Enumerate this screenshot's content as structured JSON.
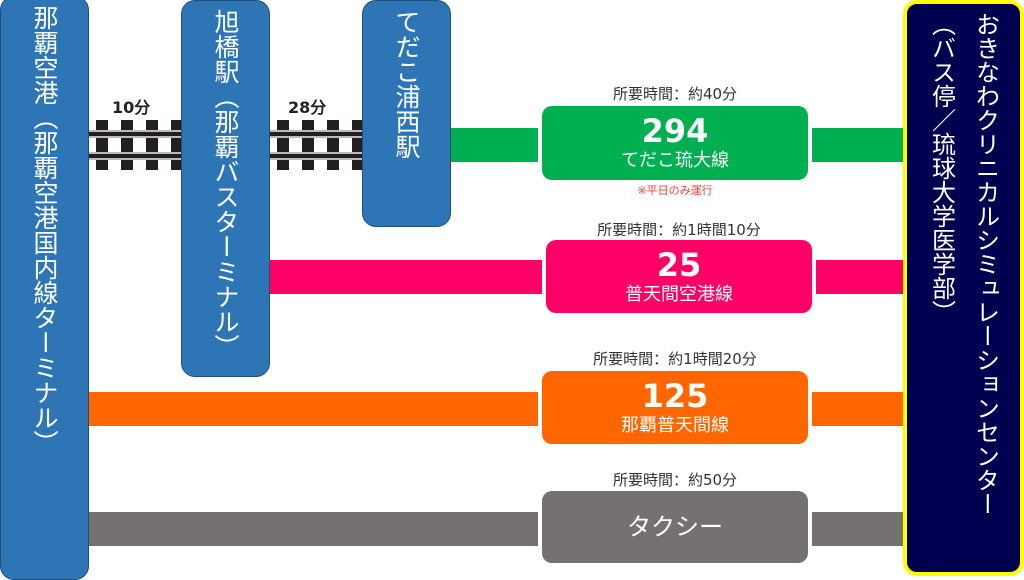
{
  "stations": [
    {
      "name": "那覇空港（那覇空港国内線ターミナル）"
    },
    {
      "name": "旭橋駅（那覇バスターミナル）"
    },
    {
      "name": "てだこ浦西駅"
    }
  ],
  "rail_segments": [
    {
      "time": "10分"
    },
    {
      "time": "28分"
    }
  ],
  "routes": [
    {
      "number": "294",
      "name": "てだこ琉大線",
      "duration": "所要時間：約40分",
      "note": "※平日のみ運行",
      "color": "#00b050"
    },
    {
      "number": "25",
      "name": "普天間空港線",
      "duration": "所要時間：約1時間10分",
      "color": "#ff0066"
    },
    {
      "number": "125",
      "name": "那覇普天間線",
      "duration": "所要時間：約1時間20分",
      "color": "#ff6600"
    },
    {
      "name": "タクシー",
      "duration": "所要時間：約50分",
      "color": "#767171"
    }
  ],
  "destination": {
    "name": "おきなわクリニカルシミュレーションセンター",
    "sub": "（バス停／琉球大学医学部）"
  }
}
